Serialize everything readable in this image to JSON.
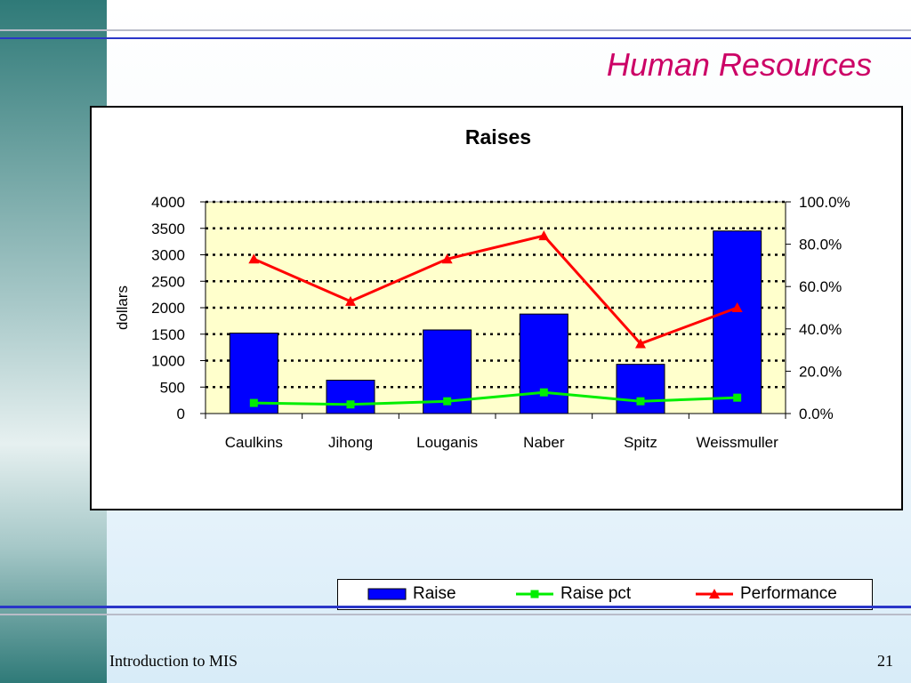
{
  "slide": {
    "title": "Human Resources",
    "footer_left": "Introduction to MIS",
    "page_number": "21"
  },
  "colors": {
    "accent": "#cc0066",
    "rule_blue": "#2a36c8",
    "plot_area": "#ffffcc",
    "bar": "#0000ff",
    "raise_pct": "#00ee00",
    "performance": "#ff0000"
  },
  "chart_data": {
    "type": "bar",
    "title": "Raises",
    "xlabel": "",
    "ylabel": "dollars",
    "y2label": "",
    "categories": [
      "Caulkins",
      "Jihong",
      "Louganis",
      "Naber",
      "Spitz",
      "Weissmuller"
    ],
    "ylim": [
      0,
      4000
    ],
    "yticks": [
      0,
      500,
      1000,
      1500,
      2000,
      2500,
      3000,
      3500,
      4000
    ],
    "ytick_labels": [
      "0",
      "500",
      "1000",
      "1500",
      "2000",
      "2500",
      "3000",
      "3500",
      "4000"
    ],
    "y2lim": [
      0,
      1.0
    ],
    "y2ticks": [
      0,
      0.2,
      0.4,
      0.6,
      0.8,
      1.0
    ],
    "y2tick_labels": [
      "0.0%",
      "20.0%",
      "40.0%",
      "60.0%",
      "80.0%",
      "100.0%"
    ],
    "grid": "horizontal dotted",
    "legend_position": "bottom",
    "series": [
      {
        "name": "Raise",
        "type": "bar",
        "axis": "left",
        "color": "#0000ff",
        "values": [
          1520,
          630,
          1580,
          1880,
          930,
          3450
        ]
      },
      {
        "name": "Raise pct",
        "type": "line",
        "axis": "right",
        "marker": "square",
        "color": "#00ee00",
        "values": [
          0.05,
          0.043,
          0.058,
          0.1,
          0.058,
          0.075
        ]
      },
      {
        "name": "Performance",
        "type": "line",
        "axis": "right",
        "marker": "triangle",
        "color": "#ff0000",
        "values": [
          0.73,
          0.53,
          0.73,
          0.84,
          0.33,
          0.5
        ]
      }
    ]
  }
}
